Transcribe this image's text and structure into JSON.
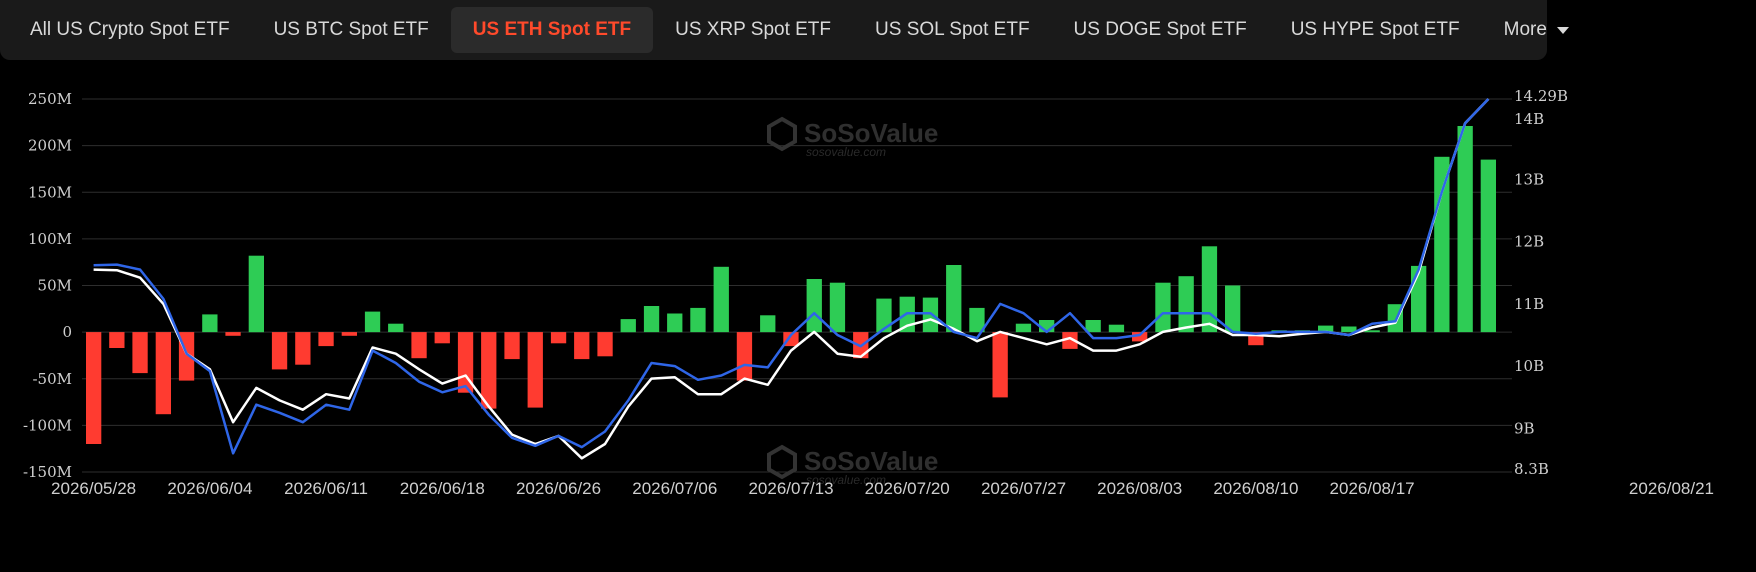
{
  "tabs": [
    {
      "label": "All US Crypto Spot ETF",
      "active": false
    },
    {
      "label": "US BTC Spot ETF",
      "active": false
    },
    {
      "label": "US ETH Spot ETF",
      "active": true
    },
    {
      "label": "US XRP Spot ETF",
      "active": false
    },
    {
      "label": "US SOL Spot ETF",
      "active": false
    },
    {
      "label": "US DOGE Spot ETF",
      "active": false
    },
    {
      "label": "US HYPE Spot ETF",
      "active": false
    }
  ],
  "more_label": "More",
  "watermark": {
    "brand": "SoSoValue",
    "url": "sosovalue.com"
  },
  "colors": {
    "inflow": "#2ecc55",
    "outflow": "#ff3b30",
    "line_total_net_assets": "#ffffff",
    "line_blue": "#2f66e8",
    "active_tab": "#ff4a2b"
  },
  "chart_data": {
    "type": "bar",
    "left_axis": {
      "ticks": [
        "250M",
        "200M",
        "150M",
        "100M",
        "50M",
        "0",
        "-50M",
        "-100M",
        "-150M"
      ],
      "ylim": [
        -150,
        250
      ],
      "unit": "M"
    },
    "right_axis": {
      "ticks": [
        "14.29B",
        "14B",
        "13B",
        "12B",
        "11B",
        "10B",
        "9B",
        "8.3B"
      ],
      "ylim": [
        8.3,
        14.29
      ],
      "unit": "B"
    },
    "x_tick_labels": [
      "2026/05/28",
      "2026/06/04",
      "2026/06/11",
      "2026/06/18",
      "2026/06/26",
      "2026/07/06",
      "2026/07/13",
      "2026/07/20",
      "2026/07/27",
      "2026/08/03",
      "2026/08/10",
      "2026/08/17",
      "2026/08/21"
    ],
    "x_tick_indices": [
      0,
      5,
      10,
      15,
      20,
      25,
      30,
      35,
      40,
      45,
      50,
      55,
      59
    ],
    "bars": [
      -120,
      -17,
      -44,
      -88,
      -52,
      19,
      -4,
      82,
      -40,
      -35,
      -15,
      -4,
      22,
      9,
      -28,
      -12,
      -65,
      -82,
      -29,
      -81,
      -12,
      -29,
      -26,
      14,
      28,
      20,
      26,
      70,
      -52,
      18,
      -15,
      57,
      53,
      -28,
      36,
      38,
      37,
      72,
      26,
      -70,
      9,
      13,
      -18,
      13,
      8,
      -10,
      53,
      60,
      92,
      50,
      -14,
      2,
      2,
      7,
      6,
      2,
      30,
      71,
      188,
      221,
      185
    ],
    "series": [
      {
        "values": [
          11.55,
          11.54,
          11.42,
          11.0,
          10.2,
          9.95,
          9.1,
          9.65,
          9.45,
          9.3,
          9.55,
          9.48,
          10.3,
          10.2,
          9.95,
          9.72,
          9.85,
          9.35,
          8.9,
          8.75,
          8.88,
          8.52,
          8.75,
          9.35,
          9.8,
          9.82,
          9.55,
          9.55,
          9.8,
          9.7,
          10.25,
          10.55,
          10.2,
          10.15,
          10.45,
          10.65,
          10.75,
          10.6,
          10.4,
          10.55,
          10.45,
          10.35,
          10.45,
          10.25,
          10.25,
          10.35,
          10.55,
          10.62,
          10.68,
          10.5,
          10.5,
          10.48,
          10.52,
          10.55,
          10.5,
          10.62,
          10.7,
          11.5,
          12.8,
          13.9,
          14.29
        ]
      },
      {
        "values": [
          11.62,
          11.63,
          11.55,
          11.08,
          10.2,
          9.92,
          8.6,
          9.38,
          9.25,
          9.1,
          9.38,
          9.3,
          10.25,
          10.05,
          9.75,
          9.58,
          9.68,
          9.22,
          8.85,
          8.72,
          8.88,
          8.7,
          8.95,
          9.45,
          10.05,
          10.0,
          9.78,
          9.85,
          10.02,
          9.98,
          10.5,
          10.85,
          10.5,
          10.32,
          10.6,
          10.85,
          10.85,
          10.55,
          10.45,
          11.0,
          10.85,
          10.55,
          10.85,
          10.45,
          10.45,
          10.5,
          10.85,
          10.85,
          10.85,
          10.55,
          10.52,
          10.55,
          10.55,
          10.55,
          10.5,
          10.68,
          10.72,
          11.55,
          12.8,
          13.9,
          14.29
        ]
      }
    ]
  }
}
